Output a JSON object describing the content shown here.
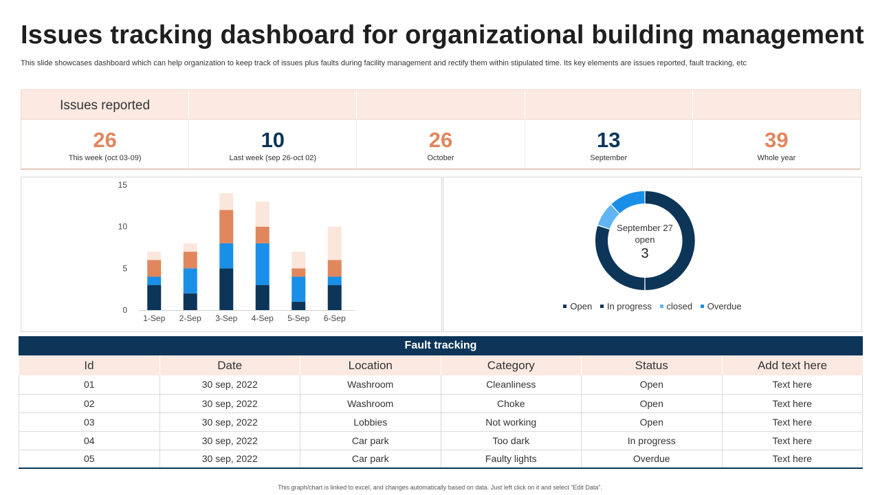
{
  "header": {
    "title": "Issues tracking dashboard for organizational building management",
    "subtitle": "This slide showcases dashboard which can help organization to keep track of issues plus faults during facility management and rectify them within stipulated time. Its key elements are issues reported, fault tracking, etc"
  },
  "kpi": {
    "label": "Issues reported",
    "cells": [
      {
        "value": "26",
        "caption": "This week (oct 03-09)",
        "color": "#e0875e"
      },
      {
        "value": "10",
        "caption": "Last week (sep 26-oct 02)",
        "color": "#0c3558"
      },
      {
        "value": "26",
        "caption": "October",
        "color": "#e0875e"
      },
      {
        "value": "13",
        "caption": "September",
        "color": "#0c3558"
      },
      {
        "value": "39",
        "caption": "Whole year",
        "color": "#e0875e"
      }
    ]
  },
  "chart_data": [
    {
      "type": "bar",
      "stacked": true,
      "categories": [
        "1-Sep",
        "2-Sep",
        "3-Sep",
        "4-Sep",
        "5-Sep",
        "6-Sep"
      ],
      "series": [
        {
          "values": [
            3,
            2,
            5,
            3,
            1,
            3
          ],
          "color": "#0c3558"
        },
        {
          "values": [
            1,
            3,
            3,
            5,
            3,
            1
          ],
          "color": "#1a8fe8"
        },
        {
          "values": [
            2,
            2,
            4,
            2,
            1,
            2
          ],
          "color": "#e0875e"
        },
        {
          "values": [
            1,
            1,
            2,
            3,
            2,
            4
          ],
          "color": "#fbe6dc"
        }
      ],
      "ylim": [
        0,
        15
      ],
      "yticks": [
        0,
        5,
        10,
        15
      ],
      "grid": false,
      "legend": "none"
    },
    {
      "type": "pie",
      "donut": true,
      "center_text": [
        "September 27",
        "open",
        "3"
      ],
      "series": [
        {
          "name": "Open",
          "value": 50,
          "color": "#0c3558"
        },
        {
          "name": "In progress",
          "value": 30,
          "color": "#0c3558"
        },
        {
          "name": "closed",
          "value": 8,
          "color": "#60b5f2"
        },
        {
          "name": "Overdue",
          "value": 12,
          "color": "#1a8fe8"
        }
      ],
      "legend": "bottom"
    }
  ],
  "table": {
    "title": "Fault tracking",
    "headers": [
      "Id",
      "Date",
      "Location",
      "Category",
      "Status",
      "Add text here"
    ],
    "rows": [
      [
        "01",
        "30 sep, 2022",
        "Washroom",
        "Cleanliness",
        "Open",
        "Text here"
      ],
      [
        "02",
        "30 sep, 2022",
        "Washroom",
        "Choke",
        "Open",
        "Text here"
      ],
      [
        "03",
        "30 sep, 2022",
        "Lobbies",
        "Not working",
        "Open",
        "Text here"
      ],
      [
        "04",
        "30 sep, 2022",
        "Car park",
        "Too dark",
        "In progress",
        "Text here"
      ],
      [
        "05",
        "30 sep, 2022",
        "Car park",
        "Faulty lights",
        "Overdue",
        "Text here"
      ]
    ]
  },
  "footer": "This graph/chart is linked to excel, and changes automatically based on data. Just left click on it and select “Edit Data”."
}
